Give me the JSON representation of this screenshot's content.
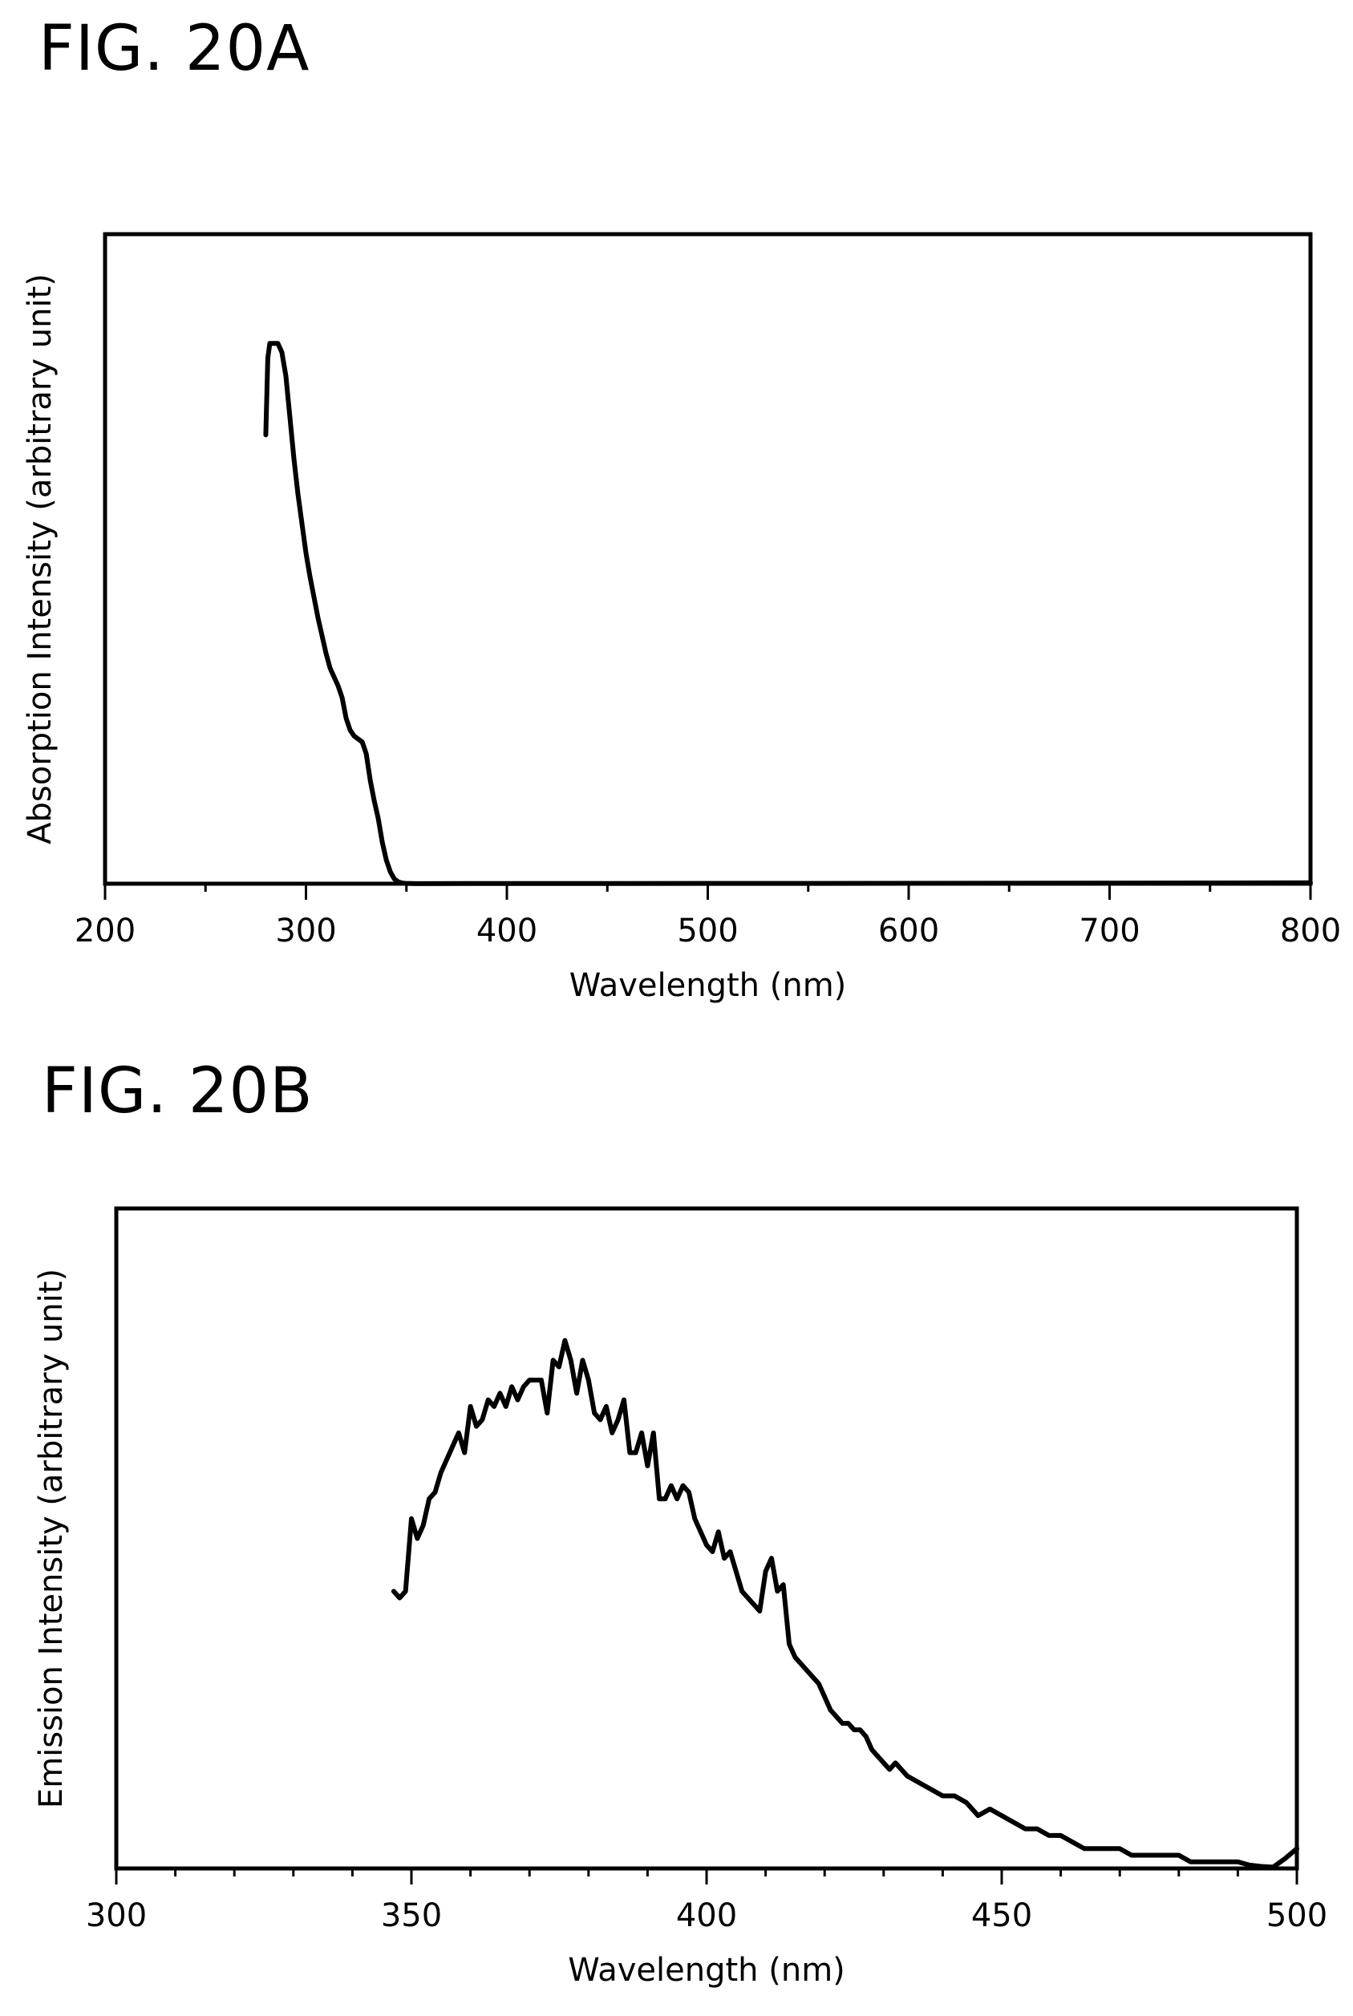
{
  "figures": {
    "a": {
      "label": "FIG. 20A"
    },
    "b": {
      "label": "FIG. 20B"
    }
  },
  "chart_data": [
    {
      "type": "line",
      "xlabel": "Wavelength (nm)",
      "ylabel": "Absorption Intensity (arbitrary unit)",
      "xlim": [
        200,
        800
      ],
      "ylim": [
        0,
        1.1
      ],
      "xticks": [
        200,
        300,
        400,
        500,
        600,
        700,
        800
      ],
      "xminor_step": 50,
      "grid": false,
      "series": [
        {
          "x": [
            280,
            281,
            282,
            284,
            286,
            288,
            290,
            292,
            294,
            296,
            298,
            300,
            302,
            304,
            306,
            308,
            310,
            312,
            314,
            316,
            318,
            320,
            322,
            324,
            326,
            328,
            330,
            332,
            334,
            336,
            338,
            340,
            342,
            344,
            346,
            348,
            350,
            352,
            355,
            360,
            380,
            400,
            450,
            500,
            550,
            600,
            650,
            700,
            750,
            800
          ],
          "y": [
            0.76,
            0.89,
            0.915,
            0.915,
            0.915,
            0.9,
            0.86,
            0.79,
            0.72,
            0.66,
            0.61,
            0.56,
            0.52,
            0.485,
            0.45,
            0.42,
            0.39,
            0.365,
            0.35,
            0.335,
            0.315,
            0.28,
            0.26,
            0.25,
            0.245,
            0.24,
            0.22,
            0.175,
            0.14,
            0.11,
            0.07,
            0.04,
            0.02,
            0.008,
            0.003,
            0.001,
            0.0005,
            0.0003,
            0.0002,
            0.0002,
            0.0003,
            0.0004,
            0.0004,
            0.0005,
            0.0005,
            0.0006,
            0.0008,
            0.001,
            0.0012,
            0.0015
          ]
        }
      ]
    },
    {
      "type": "line",
      "xlabel": "Wavelength (nm)",
      "ylabel": "Emission Intensity (arbitrary unit)",
      "xlim": [
        300,
        500
      ],
      "ylim": [
        0,
        1.0
      ],
      "xticks": [
        300,
        350,
        400,
        450,
        500
      ],
      "xminor_step": 10,
      "grid": false,
      "series": [
        {
          "x": [
            347,
            348,
            349,
            350,
            351,
            352,
            353,
            354,
            355,
            356,
            357,
            358,
            359,
            360,
            361,
            362,
            363,
            364,
            365,
            366,
            367,
            368,
            369,
            370,
            371,
            372,
            373,
            374,
            375,
            376,
            377,
            378,
            379,
            380,
            381,
            382,
            383,
            384,
            385,
            386,
            387,
            388,
            389,
            390,
            391,
            392,
            393,
            394,
            395,
            396,
            397,
            398,
            399,
            400,
            401,
            402,
            403,
            404,
            405,
            406,
            407,
            408,
            409,
            410,
            411,
            412,
            413,
            414,
            415,
            416,
            417,
            418,
            419,
            420,
            421,
            422,
            423,
            424,
            425,
            426,
            427,
            428,
            429,
            430,
            431,
            432,
            434,
            436,
            438,
            440,
            442,
            444,
            446,
            448,
            450,
            452,
            454,
            456,
            458,
            460,
            462,
            464,
            466,
            468,
            470,
            472,
            474,
            476,
            478,
            480,
            482,
            484,
            486,
            488,
            490,
            492,
            494,
            496,
            498,
            500
          ],
          "y": [
            0.42,
            0.41,
            0.42,
            0.53,
            0.5,
            0.52,
            0.56,
            0.57,
            0.6,
            0.62,
            0.64,
            0.66,
            0.63,
            0.7,
            0.67,
            0.68,
            0.71,
            0.7,
            0.72,
            0.7,
            0.73,
            0.71,
            0.73,
            0.74,
            0.74,
            0.74,
            0.69,
            0.77,
            0.76,
            0.8,
            0.77,
            0.72,
            0.77,
            0.74,
            0.69,
            0.68,
            0.7,
            0.66,
            0.68,
            0.71,
            0.63,
            0.63,
            0.66,
            0.61,
            0.66,
            0.56,
            0.56,
            0.58,
            0.56,
            0.58,
            0.57,
            0.53,
            0.51,
            0.49,
            0.48,
            0.51,
            0.47,
            0.48,
            0.45,
            0.42,
            0.41,
            0.4,
            0.39,
            0.45,
            0.47,
            0.42,
            0.43,
            0.34,
            0.32,
            0.31,
            0.3,
            0.29,
            0.28,
            0.26,
            0.24,
            0.23,
            0.22,
            0.22,
            0.21,
            0.21,
            0.2,
            0.18,
            0.17,
            0.16,
            0.15,
            0.16,
            0.14,
            0.13,
            0.12,
            0.11,
            0.11,
            0.1,
            0.08,
            0.09,
            0.08,
            0.07,
            0.06,
            0.06,
            0.05,
            0.05,
            0.04,
            0.03,
            0.03,
            0.03,
            0.03,
            0.02,
            0.02,
            0.02,
            0.02,
            0.02,
            0.01,
            0.01,
            0.01,
            0.01,
            0.01,
            0.005,
            0.003,
            0.002,
            0.015,
            0.03
          ]
        }
      ]
    }
  ]
}
